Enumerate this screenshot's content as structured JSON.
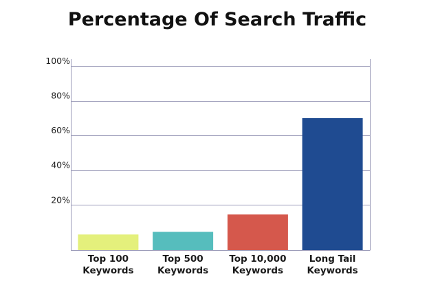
{
  "chart_data": {
    "type": "bar",
    "title": "Percentage Of Search Traffic",
    "xlabel": "",
    "ylabel": "",
    "categories": [
      [
        "Top 100",
        "Keywords"
      ],
      [
        "Top 500",
        "Keywords"
      ],
      [
        "Top 10,000",
        "Keywords"
      ],
      [
        "Long Tail",
        "Keywords"
      ]
    ],
    "values": [
      3,
      4.5,
      14.5,
      70
    ],
    "bar_colors": [
      "#e4f07c",
      "#56bdbd",
      "#d5584c",
      "#1f4b91"
    ],
    "y_ticks": [
      20,
      40,
      60,
      80,
      100
    ],
    "y_tick_labels": [
      "20%",
      "40%",
      "60%",
      "80%",
      "100%"
    ],
    "ylim": [
      -6,
      104
    ],
    "grid": true,
    "legend": "none"
  }
}
